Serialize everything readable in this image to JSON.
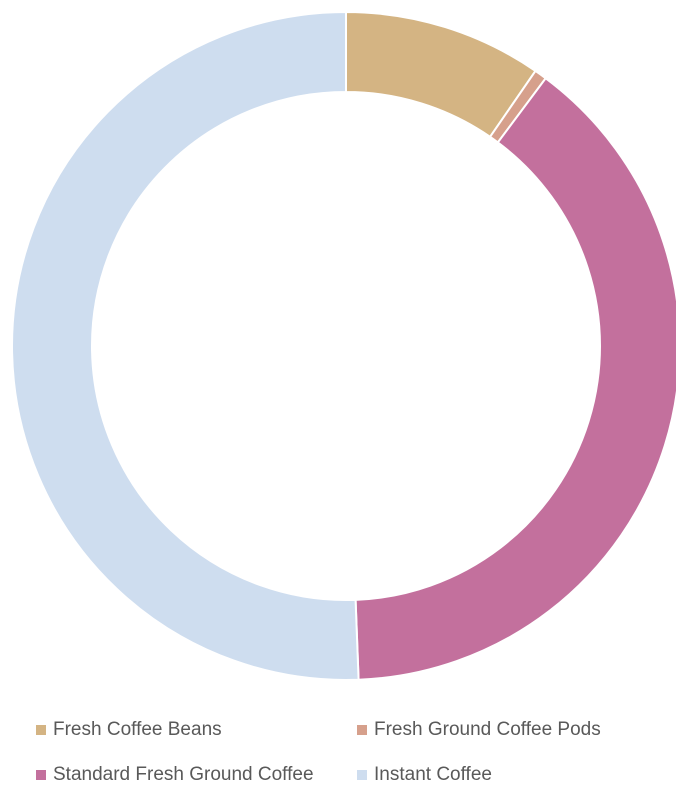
{
  "chart_data": {
    "type": "donut",
    "title": "",
    "legend_position": "bottom",
    "categories": [
      "Fresh Coffee Beans",
      "Fresh Ground Coffee Pods",
      "Standard Fresh Ground Coffee",
      "Instant Coffee"
    ],
    "values": [
      9.6,
      0.6,
      39.2,
      50.6
    ],
    "colors": [
      "#D4B483",
      "#D6A08C",
      "#C3709D",
      "#CEDDEF"
    ],
    "start_angle_deg": 0,
    "direction": "clockwise"
  }
}
